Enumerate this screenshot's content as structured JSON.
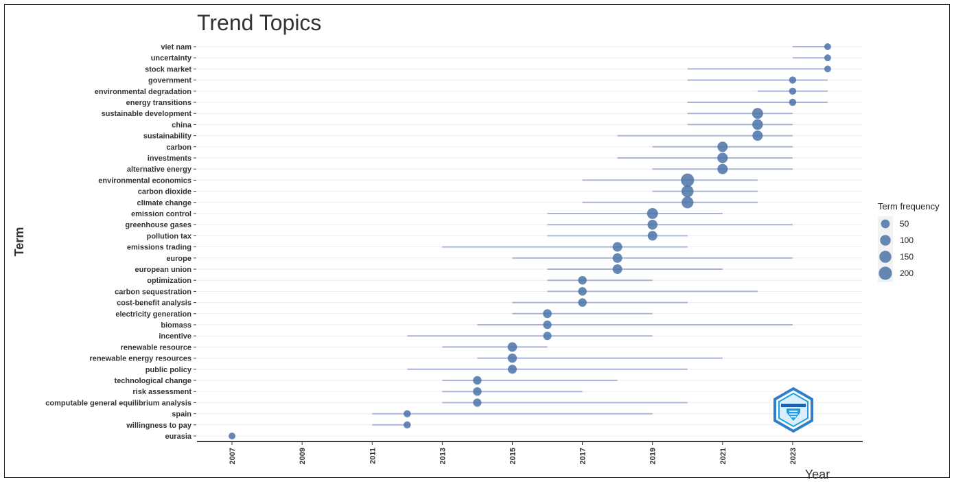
{
  "chart_data": {
    "type": "scatter",
    "title": "Trend Topics",
    "xlabel": "Year",
    "ylabel": "Term",
    "xlim": [
      2006,
      2025
    ],
    "x_ticks": [
      "2007",
      "2009",
      "2011",
      "2013",
      "2015",
      "2017",
      "2019",
      "2021",
      "2023"
    ],
    "legend": {
      "title": "Term frequency",
      "placement": "right",
      "entries": [
        {
          "label": "50",
          "size": 50
        },
        {
          "label": "100",
          "size": 100
        },
        {
          "label": "150",
          "size": 150
        },
        {
          "label": "200",
          "size": 200
        }
      ]
    },
    "colors": {
      "point": "#4a73a8",
      "line": "#a7b4d6",
      "grid": "#ebebeb",
      "axis": "#000000"
    },
    "points": [
      {
        "term": "viet nam",
        "start": 2023,
        "median": 2024,
        "end": 2024,
        "freq": 15
      },
      {
        "term": "uncertainty",
        "start": 2023,
        "median": 2024,
        "end": 2024,
        "freq": 15
      },
      {
        "term": "stock market",
        "start": 2020,
        "median": 2024,
        "end": 2024,
        "freq": 15
      },
      {
        "term": "government",
        "start": 2020,
        "median": 2023,
        "end": 2024,
        "freq": 20
      },
      {
        "term": "environmental degradation",
        "start": 2022,
        "median": 2023,
        "end": 2024,
        "freq": 20
      },
      {
        "term": "energy transitions",
        "start": 2020,
        "median": 2023,
        "end": 2024,
        "freq": 20
      },
      {
        "term": "sustainable development",
        "start": 2020,
        "median": 2022,
        "end": 2023,
        "freq": 110
      },
      {
        "term": "china",
        "start": 2020,
        "median": 2022,
        "end": 2023,
        "freq": 100
      },
      {
        "term": "sustainability",
        "start": 2018,
        "median": 2022,
        "end": 2023,
        "freq": 90
      },
      {
        "term": "carbon",
        "start": 2019,
        "median": 2021,
        "end": 2023,
        "freq": 90
      },
      {
        "term": "investments",
        "start": 2018,
        "median": 2021,
        "end": 2023,
        "freq": 95
      },
      {
        "term": "alternative energy",
        "start": 2019,
        "median": 2021,
        "end": 2023,
        "freq": 90
      },
      {
        "term": "environmental economics",
        "start": 2017,
        "median": 2020,
        "end": 2022,
        "freq": 200
      },
      {
        "term": "carbon dioxide",
        "start": 2019,
        "median": 2020,
        "end": 2022,
        "freq": 150
      },
      {
        "term": "climate change",
        "start": 2017,
        "median": 2020,
        "end": 2022,
        "freq": 140
      },
      {
        "term": "emission control",
        "start": 2016,
        "median": 2019,
        "end": 2021,
        "freq": 110
      },
      {
        "term": "greenhouse gases",
        "start": 2016,
        "median": 2019,
        "end": 2023,
        "freq": 80
      },
      {
        "term": "pollution tax",
        "start": 2016,
        "median": 2019,
        "end": 2020,
        "freq": 70
      },
      {
        "term": "emissions trading",
        "start": 2013,
        "median": 2018,
        "end": 2020,
        "freq": 70
      },
      {
        "term": "europe",
        "start": 2015,
        "median": 2018,
        "end": 2023,
        "freq": 70
      },
      {
        "term": "european union",
        "start": 2016,
        "median": 2018,
        "end": 2021,
        "freq": 70
      },
      {
        "term": "optimization",
        "start": 2016,
        "median": 2017,
        "end": 2019,
        "freq": 45
      },
      {
        "term": "carbon sequestration",
        "start": 2016,
        "median": 2017,
        "end": 2022,
        "freq": 45
      },
      {
        "term": "cost-benefit analysis",
        "start": 2015,
        "median": 2017,
        "end": 2020,
        "freq": 45
      },
      {
        "term": "electricity generation",
        "start": 2015,
        "median": 2016,
        "end": 2019,
        "freq": 50
      },
      {
        "term": "biomass",
        "start": 2014,
        "median": 2016,
        "end": 2023,
        "freq": 45
      },
      {
        "term": "incentive",
        "start": 2012,
        "median": 2016,
        "end": 2019,
        "freq": 40
      },
      {
        "term": "renewable resource",
        "start": 2013,
        "median": 2015,
        "end": 2016,
        "freq": 65
      },
      {
        "term": "renewable energy resources",
        "start": 2014,
        "median": 2015,
        "end": 2021,
        "freq": 60
      },
      {
        "term": "public policy",
        "start": 2012,
        "median": 2015,
        "end": 2020,
        "freq": 55
      },
      {
        "term": "technological change",
        "start": 2013,
        "median": 2014,
        "end": 2018,
        "freq": 45
      },
      {
        "term": "risk assessment",
        "start": 2013,
        "median": 2014,
        "end": 2017,
        "freq": 45
      },
      {
        "term": "computable general equilibrium analysis",
        "start": 2013,
        "median": 2014,
        "end": 2020,
        "freq": 40
      },
      {
        "term": "spain",
        "start": 2011,
        "median": 2012,
        "end": 2019,
        "freq": 20
      },
      {
        "term": "willingness to pay",
        "start": 2011,
        "median": 2012,
        "end": 2012,
        "freq": 20
      },
      {
        "term": "eurasia",
        "start": 2007,
        "median": 2007,
        "end": 2007,
        "freq": 15
      }
    ]
  }
}
